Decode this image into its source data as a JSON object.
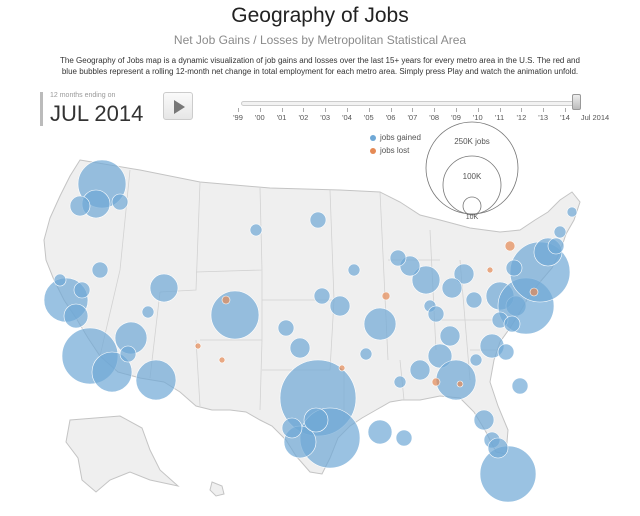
{
  "header": {
    "title": "Geography of Jobs",
    "subtitle": "Net Job Gains / Losses by Metropolitan Statistical Area",
    "description": "The Geography of Jobs map is a dynamic visualization of job gains and losses over the last 15+ years for every metro area in the U.S. The red and blue bubbles represent a rolling 12-month net change in total employment for each metro area. Simply press Play and watch the animation unfold."
  },
  "controls": {
    "period_caption": "12 months ending on",
    "period_value": "JUL  2014",
    "play_icon": "play-icon",
    "timeline_ticks": [
      "'99",
      "'00",
      "'01",
      "'02",
      "'03",
      "'04",
      "'05",
      "'06",
      "'07",
      "'08",
      "'09",
      "'10",
      "'11",
      "'12",
      "'13",
      "'14",
      "Jul 2014"
    ],
    "timeline_position": 1.0
  },
  "legend": {
    "gained_label": "jobs gained",
    "lost_label": "jobs lost",
    "size_labels": [
      "250K jobs",
      "100K",
      "10K"
    ]
  },
  "colors": {
    "gained": "#6fa8d6",
    "lost": "#e58a55",
    "land": "#efefef",
    "border": "#c9c9c9"
  }
}
